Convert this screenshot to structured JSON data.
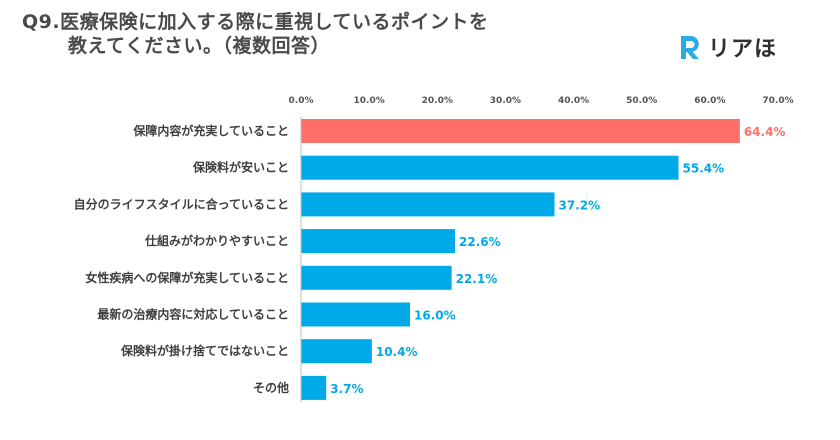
{
  "title": {
    "line1": "Q9.医療保険に加入する際に重視しているポイントを",
    "line2": "教えてください。（複数回答）"
  },
  "logo": {
    "text": "リアほ",
    "color": "#29abe2"
  },
  "chart_data": {
    "type": "bar",
    "orientation": "horizontal",
    "categories": [
      "保障内容が充実していること",
      "保険料が安いこと",
      "自分のライフスタイルに合っていること",
      "仕組みがわかりやすいこと",
      "女性疾病への保障が充実していること",
      "最新の治療内容に対応していること",
      "保険料が掛け捨てではないこと",
      "その他"
    ],
    "values": [
      64.4,
      55.4,
      37.2,
      22.6,
      22.1,
      16.0,
      10.4,
      3.7
    ],
    "value_labels": [
      "64.4%",
      "55.4%",
      "37.2%",
      "22.6%",
      "22.1%",
      "16.0%",
      "10.4%",
      "3.7%"
    ],
    "xlim": [
      0,
      70
    ],
    "x_ticks": [
      "0.0%",
      "10.0%",
      "20.0%",
      "30.0%",
      "40.0%",
      "50.0%",
      "60.0%",
      "70.0%"
    ],
    "axis_position": "top",
    "grid": false,
    "colors": {
      "highlight": "#ff6f69",
      "default": "#00a9e8"
    },
    "highlight_index": 0
  }
}
